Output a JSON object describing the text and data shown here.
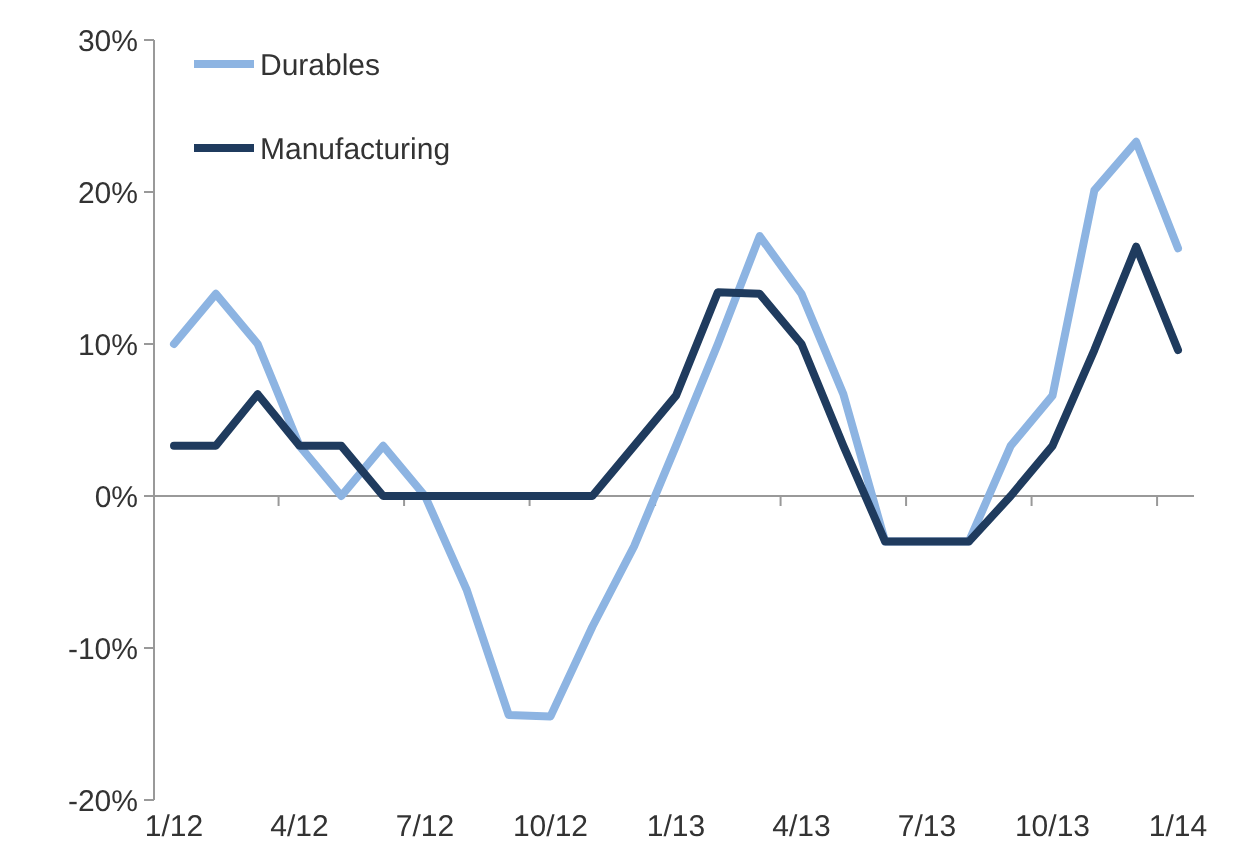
{
  "chart_data": {
    "type": "line",
    "categories": [
      "1/12",
      null,
      null,
      "4/12",
      null,
      null,
      "7/12",
      null,
      null,
      "10/12",
      null,
      null,
      "1/13",
      null,
      null,
      "4/13",
      null,
      null,
      "7/13",
      null,
      null,
      "10/13",
      null,
      null,
      "1/14"
    ],
    "series": [
      {
        "name": "Durables",
        "color": "#8db4e2",
        "values": [
          10,
          13.3,
          10,
          3.3,
          0,
          3.3,
          0,
          -6.2,
          -14.4,
          -14.5,
          -8.6,
          -3.3,
          3.3,
          10,
          17.1,
          13.3,
          6.7,
          -3,
          -3,
          -3,
          3.3,
          6.6,
          20.1,
          23.3,
          16.3
        ]
      },
      {
        "name": "Manufacturing",
        "color": "#1f3b5e",
        "values": [
          3.3,
          3.3,
          6.7,
          3.3,
          3.3,
          0,
          0,
          0,
          0,
          0,
          0,
          3.3,
          6.6,
          13.4,
          13.3,
          10,
          3.3,
          -3,
          -3,
          -3,
          0,
          3.3,
          9.6,
          16.4,
          9.6
        ]
      }
    ],
    "ylim": [
      -20,
      30
    ],
    "yticks": [
      {
        "value": -20,
        "label": "-20%"
      },
      {
        "value": -10,
        "label": "-10%"
      },
      {
        "value": 0,
        "label": "0%"
      },
      {
        "value": 10,
        "label": "10%"
      },
      {
        "value": 20,
        "label": "20%"
      },
      {
        "value": 30,
        "label": "30%"
      }
    ],
    "legend": "top left",
    "marker": "none",
    "line_style": "solid"
  }
}
